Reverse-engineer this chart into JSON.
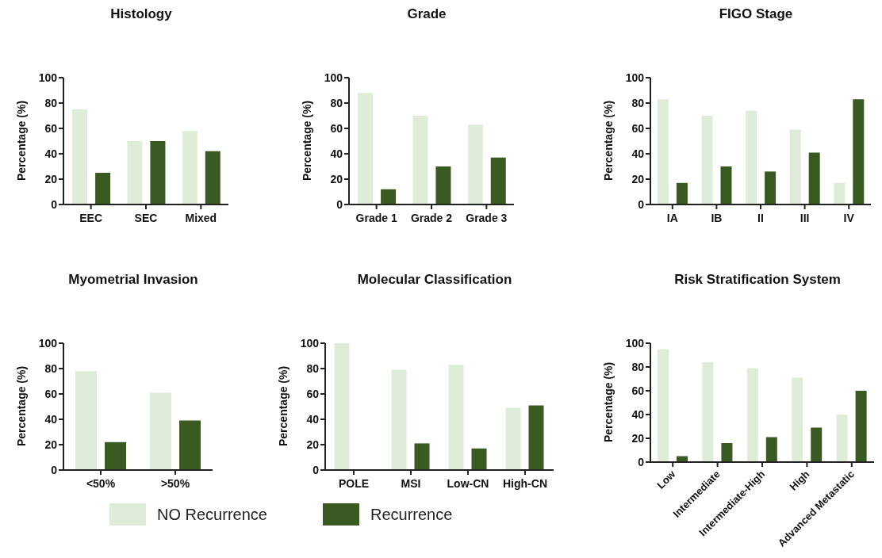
{
  "chart_data": [
    {
      "type": "bar",
      "title": "Histology",
      "ylabel": "Percentage (%)",
      "categories": [
        "EEC",
        "SEC",
        "Mixed"
      ],
      "ylim": [
        0,
        100
      ],
      "yticks": [
        0,
        20,
        40,
        60,
        80,
        100
      ],
      "grid": false,
      "series": [
        {
          "color": "#dfecd8",
          "values": [
            75,
            50,
            58
          ]
        },
        {
          "color": "#3a5a22",
          "values": [
            25,
            50,
            42
          ]
        }
      ]
    },
    {
      "type": "bar",
      "title": "Grade",
      "ylabel": "Percentage (%)",
      "categories": [
        "Grade 1",
        "Grade 2",
        "Grade 3"
      ],
      "ylim": [
        0,
        100
      ],
      "yticks": [
        0,
        20,
        40,
        60,
        80,
        100
      ],
      "grid": false,
      "series": [
        {
          "color": "#dfecd8",
          "values": [
            88,
            70,
            63
          ]
        },
        {
          "color": "#3a5a22",
          "values": [
            12,
            30,
            37
          ]
        }
      ]
    },
    {
      "type": "bar",
      "title": "FIGO Stage",
      "ylabel": "Percentage (%)",
      "categories": [
        "IA",
        "IB",
        "II",
        "III",
        "IV"
      ],
      "ylim": [
        0,
        100
      ],
      "yticks": [
        0,
        20,
        40,
        60,
        80,
        100
      ],
      "grid": false,
      "series": [
        {
          "color": "#dfecd8",
          "values": [
            83,
            70,
            74,
            59,
            17
          ]
        },
        {
          "color": "#3a5a22",
          "values": [
            17,
            30,
            26,
            41,
            83
          ]
        }
      ]
    },
    {
      "type": "bar",
      "title": "Myometrial Invasion",
      "ylabel": "Percentage (%)",
      "categories": [
        "<50%",
        ">50%"
      ],
      "ylim": [
        0,
        100
      ],
      "yticks": [
        0,
        20,
        40,
        60,
        80,
        100
      ],
      "grid": false,
      "legend": "bottom",
      "series": [
        {
          "name": "NO Recurrence",
          "color": "#dfecd8",
          "values": [
            78,
            61
          ]
        },
        {
          "name": "Recurrence",
          "color": "#3a5a22",
          "values": [
            22,
            39
          ]
        }
      ]
    },
    {
      "type": "bar",
      "title": "Molecular Classification",
      "ylabel": "Percentage (%)",
      "categories": [
        "POLE",
        "MSI",
        "Low-CN",
        "High-CN"
      ],
      "ylim": [
        0,
        100
      ],
      "yticks": [
        0,
        20,
        40,
        60,
        80,
        100
      ],
      "grid": false,
      "series": [
        {
          "color": "#dfecd8",
          "values": [
            100,
            79,
            83,
            49
          ]
        },
        {
          "color": "#3a5a22",
          "values": [
            0,
            21,
            17,
            51
          ]
        }
      ]
    },
    {
      "type": "bar",
      "title": "Risk Stratification System",
      "ylabel": "Percentage (%)",
      "categories": [
        "Low",
        "Intermediate",
        "Intermediate-High",
        "High",
        "Advanced Metastatic"
      ],
      "ylim": [
        0,
        100
      ],
      "yticks": [
        0,
        20,
        40,
        60,
        80,
        100
      ],
      "grid": false,
      "series": [
        {
          "color": "#dfecd8",
          "values": [
            95,
            84,
            79,
            71,
            40
          ]
        },
        {
          "color": "#3a5a22",
          "values": [
            5,
            16,
            21,
            29,
            60
          ]
        }
      ]
    }
  ]
}
